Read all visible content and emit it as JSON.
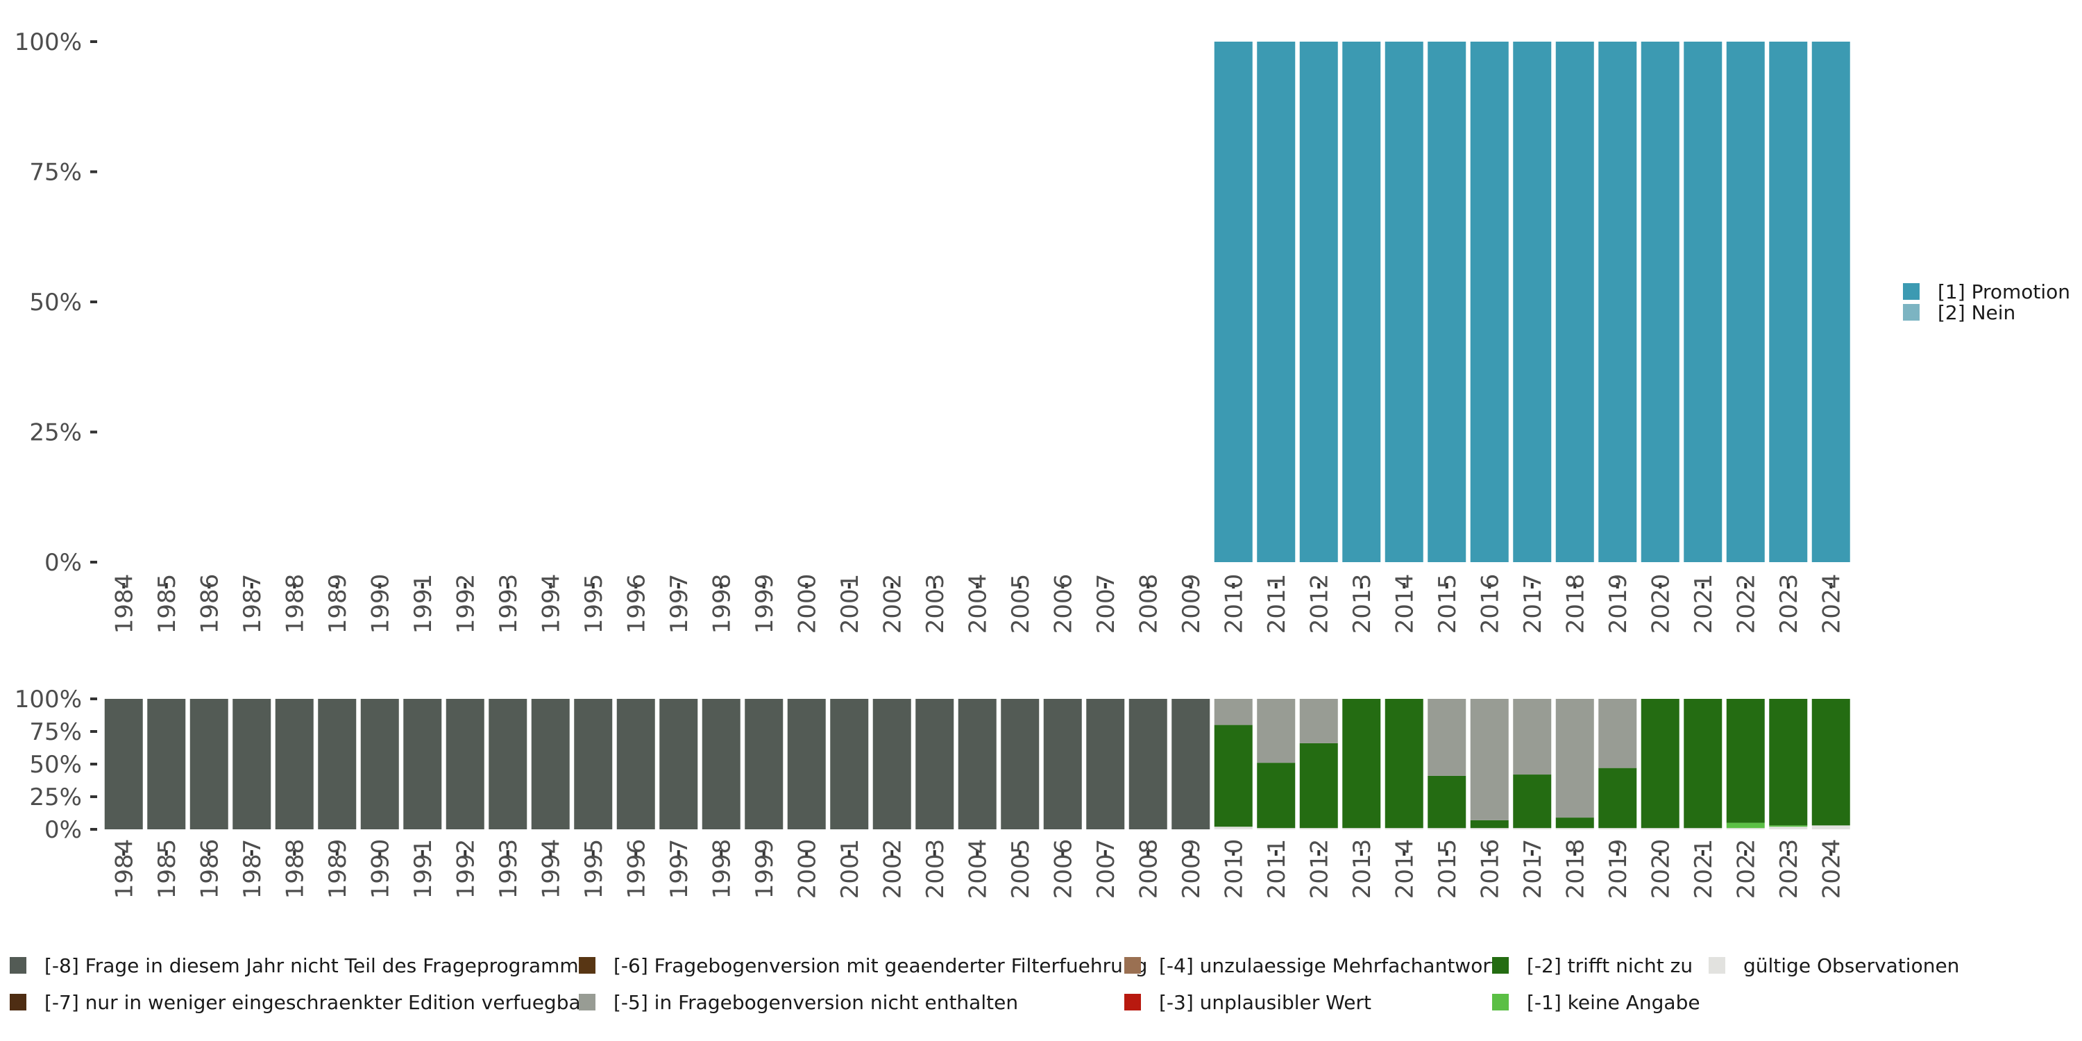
{
  "chart_data": [
    {
      "type": "bar",
      "stacked": true,
      "categories": [
        "1984",
        "1985",
        "1986",
        "1987",
        "1988",
        "1989",
        "1990",
        "1991",
        "1992",
        "1993",
        "1994",
        "1995",
        "1996",
        "1997",
        "1998",
        "1999",
        "2000",
        "2001",
        "2002",
        "2003",
        "2004",
        "2005",
        "2006",
        "2007",
        "2008",
        "2009",
        "2010",
        "2011",
        "2012",
        "2013",
        "2014",
        "2015",
        "2016",
        "2017",
        "2018",
        "2019",
        "2020",
        "2021",
        "2022",
        "2023",
        "2024"
      ],
      "y_ticks": [
        "0%",
        "25%",
        "50%",
        "75%",
        "100%"
      ],
      "ylim": [
        0,
        100
      ],
      "grid": false,
      "legend_position": "right",
      "series": [
        {
          "name": "[1] Promotion",
          "color": "#3c9ab2",
          "values": [
            0,
            0,
            0,
            0,
            0,
            0,
            0,
            0,
            0,
            0,
            0,
            0,
            0,
            0,
            0,
            0,
            0,
            0,
            0,
            0,
            0,
            0,
            0,
            0,
            0,
            0,
            100,
            100,
            100,
            100,
            100,
            100,
            100,
            100,
            100,
            100,
            100,
            100,
            100,
            100,
            100
          ]
        },
        {
          "name": "[2] Nein",
          "color": "#7cb4c2",
          "values": [
            0,
            0,
            0,
            0,
            0,
            0,
            0,
            0,
            0,
            0,
            0,
            0,
            0,
            0,
            0,
            0,
            0,
            0,
            0,
            0,
            0,
            0,
            0,
            0,
            0,
            0,
            0,
            0,
            0,
            0,
            0,
            0,
            0,
            0,
            0,
            0,
            0,
            0,
            0,
            0,
            0
          ]
        }
      ]
    },
    {
      "type": "bar",
      "stacked": true,
      "categories": [
        "1984",
        "1985",
        "1986",
        "1987",
        "1988",
        "1989",
        "1990",
        "1991",
        "1992",
        "1993",
        "1994",
        "1995",
        "1996",
        "1997",
        "1998",
        "1999",
        "2000",
        "2001",
        "2002",
        "2003",
        "2004",
        "2005",
        "2006",
        "2007",
        "2008",
        "2009",
        "2010",
        "2011",
        "2012",
        "2013",
        "2014",
        "2015",
        "2016",
        "2017",
        "2018",
        "2019",
        "2020",
        "2021",
        "2022",
        "2023",
        "2024"
      ],
      "y_ticks": [
        "0%",
        "25%",
        "50%",
        "75%",
        "100%"
      ],
      "ylim": [
        0,
        100
      ],
      "grid": false,
      "legend_position": "bottom",
      "series": [
        {
          "name": "gültige Observationen",
          "color": "#e2e2df",
          "values": [
            0,
            0,
            0,
            0,
            0,
            0,
            0,
            0,
            0,
            0,
            0,
            0,
            0,
            0,
            0,
            0,
            0,
            0,
            0,
            0,
            0,
            0,
            0,
            0,
            0,
            0,
            2,
            1,
            1,
            1,
            1,
            1,
            1,
            1,
            1,
            1,
            1,
            1,
            1,
            2,
            3
          ]
        },
        {
          "name": "[-1] keine Angabe",
          "color": "#5bbf45",
          "values": [
            0,
            0,
            0,
            0,
            0,
            0,
            0,
            0,
            0,
            0,
            0,
            0,
            0,
            0,
            0,
            0,
            0,
            0,
            0,
            0,
            0,
            0,
            0,
            0,
            0,
            0,
            0,
            0,
            0,
            0,
            0,
            0,
            0,
            0,
            0,
            0,
            0,
            0,
            4,
            1,
            0
          ]
        },
        {
          "name": "[-2] trifft nicht zu",
          "color": "#246c12",
          "values": [
            0,
            0,
            0,
            0,
            0,
            0,
            0,
            0,
            0,
            0,
            0,
            0,
            0,
            0,
            0,
            0,
            0,
            0,
            0,
            0,
            0,
            0,
            0,
            0,
            0,
            0,
            78,
            50,
            65,
            99,
            99,
            40,
            6,
            41,
            8,
            46,
            99,
            99,
            95,
            97,
            97
          ]
        },
        {
          "name": "[-5] in Fragebogenversion nicht enthalten",
          "color": "#989c94",
          "values": [
            0,
            0,
            0,
            0,
            0,
            0,
            0,
            0,
            0,
            0,
            0,
            0,
            0,
            0,
            0,
            0,
            0,
            0,
            0,
            0,
            0,
            0,
            0,
            0,
            0,
            0,
            20,
            49,
            34,
            0,
            0,
            59,
            93,
            58,
            91,
            53,
            0,
            0,
            0,
            0,
            0
          ]
        },
        {
          "name": "[-8] Frage in diesem Jahr nicht Teil des Frageprogramms",
          "color": "#535b55",
          "values": [
            100,
            100,
            100,
            100,
            100,
            100,
            100,
            100,
            100,
            100,
            100,
            100,
            100,
            100,
            100,
            100,
            100,
            100,
            100,
            100,
            100,
            100,
            100,
            100,
            100,
            100,
            0,
            0,
            0,
            0,
            0,
            0,
            0,
            0,
            0,
            0,
            0,
            0,
            0,
            0,
            0
          ]
        }
      ]
    }
  ],
  "legend_bottom": [
    {
      "label": "[-8] Frage in diesem Jahr nicht Teil des Frageprogramms",
      "color": "#535b55"
    },
    {
      "label": "[-7] nur in weniger eingeschraenkter Edition verfuegbar",
      "color": "#4e2d13"
    },
    {
      "label": "[-6] Fragebogenversion mit geaenderter Filterfuehrung",
      "color": "#583614"
    },
    {
      "label": "[-5] in Fragebogenversion nicht enthalten",
      "color": "#989c94"
    },
    {
      "label": "[-4] unzulaessige Mehrfachantwort",
      "color": "#9a7052"
    },
    {
      "label": "[-3] unplausibler Wert",
      "color": "#b8190f"
    },
    {
      "label": "[-2] trifft nicht zu",
      "color": "#246c12"
    },
    {
      "label": "[-1] keine Angabe",
      "color": "#5bbf45"
    },
    {
      "label": "gültige Observationen",
      "color": "#e2e2df"
    }
  ]
}
